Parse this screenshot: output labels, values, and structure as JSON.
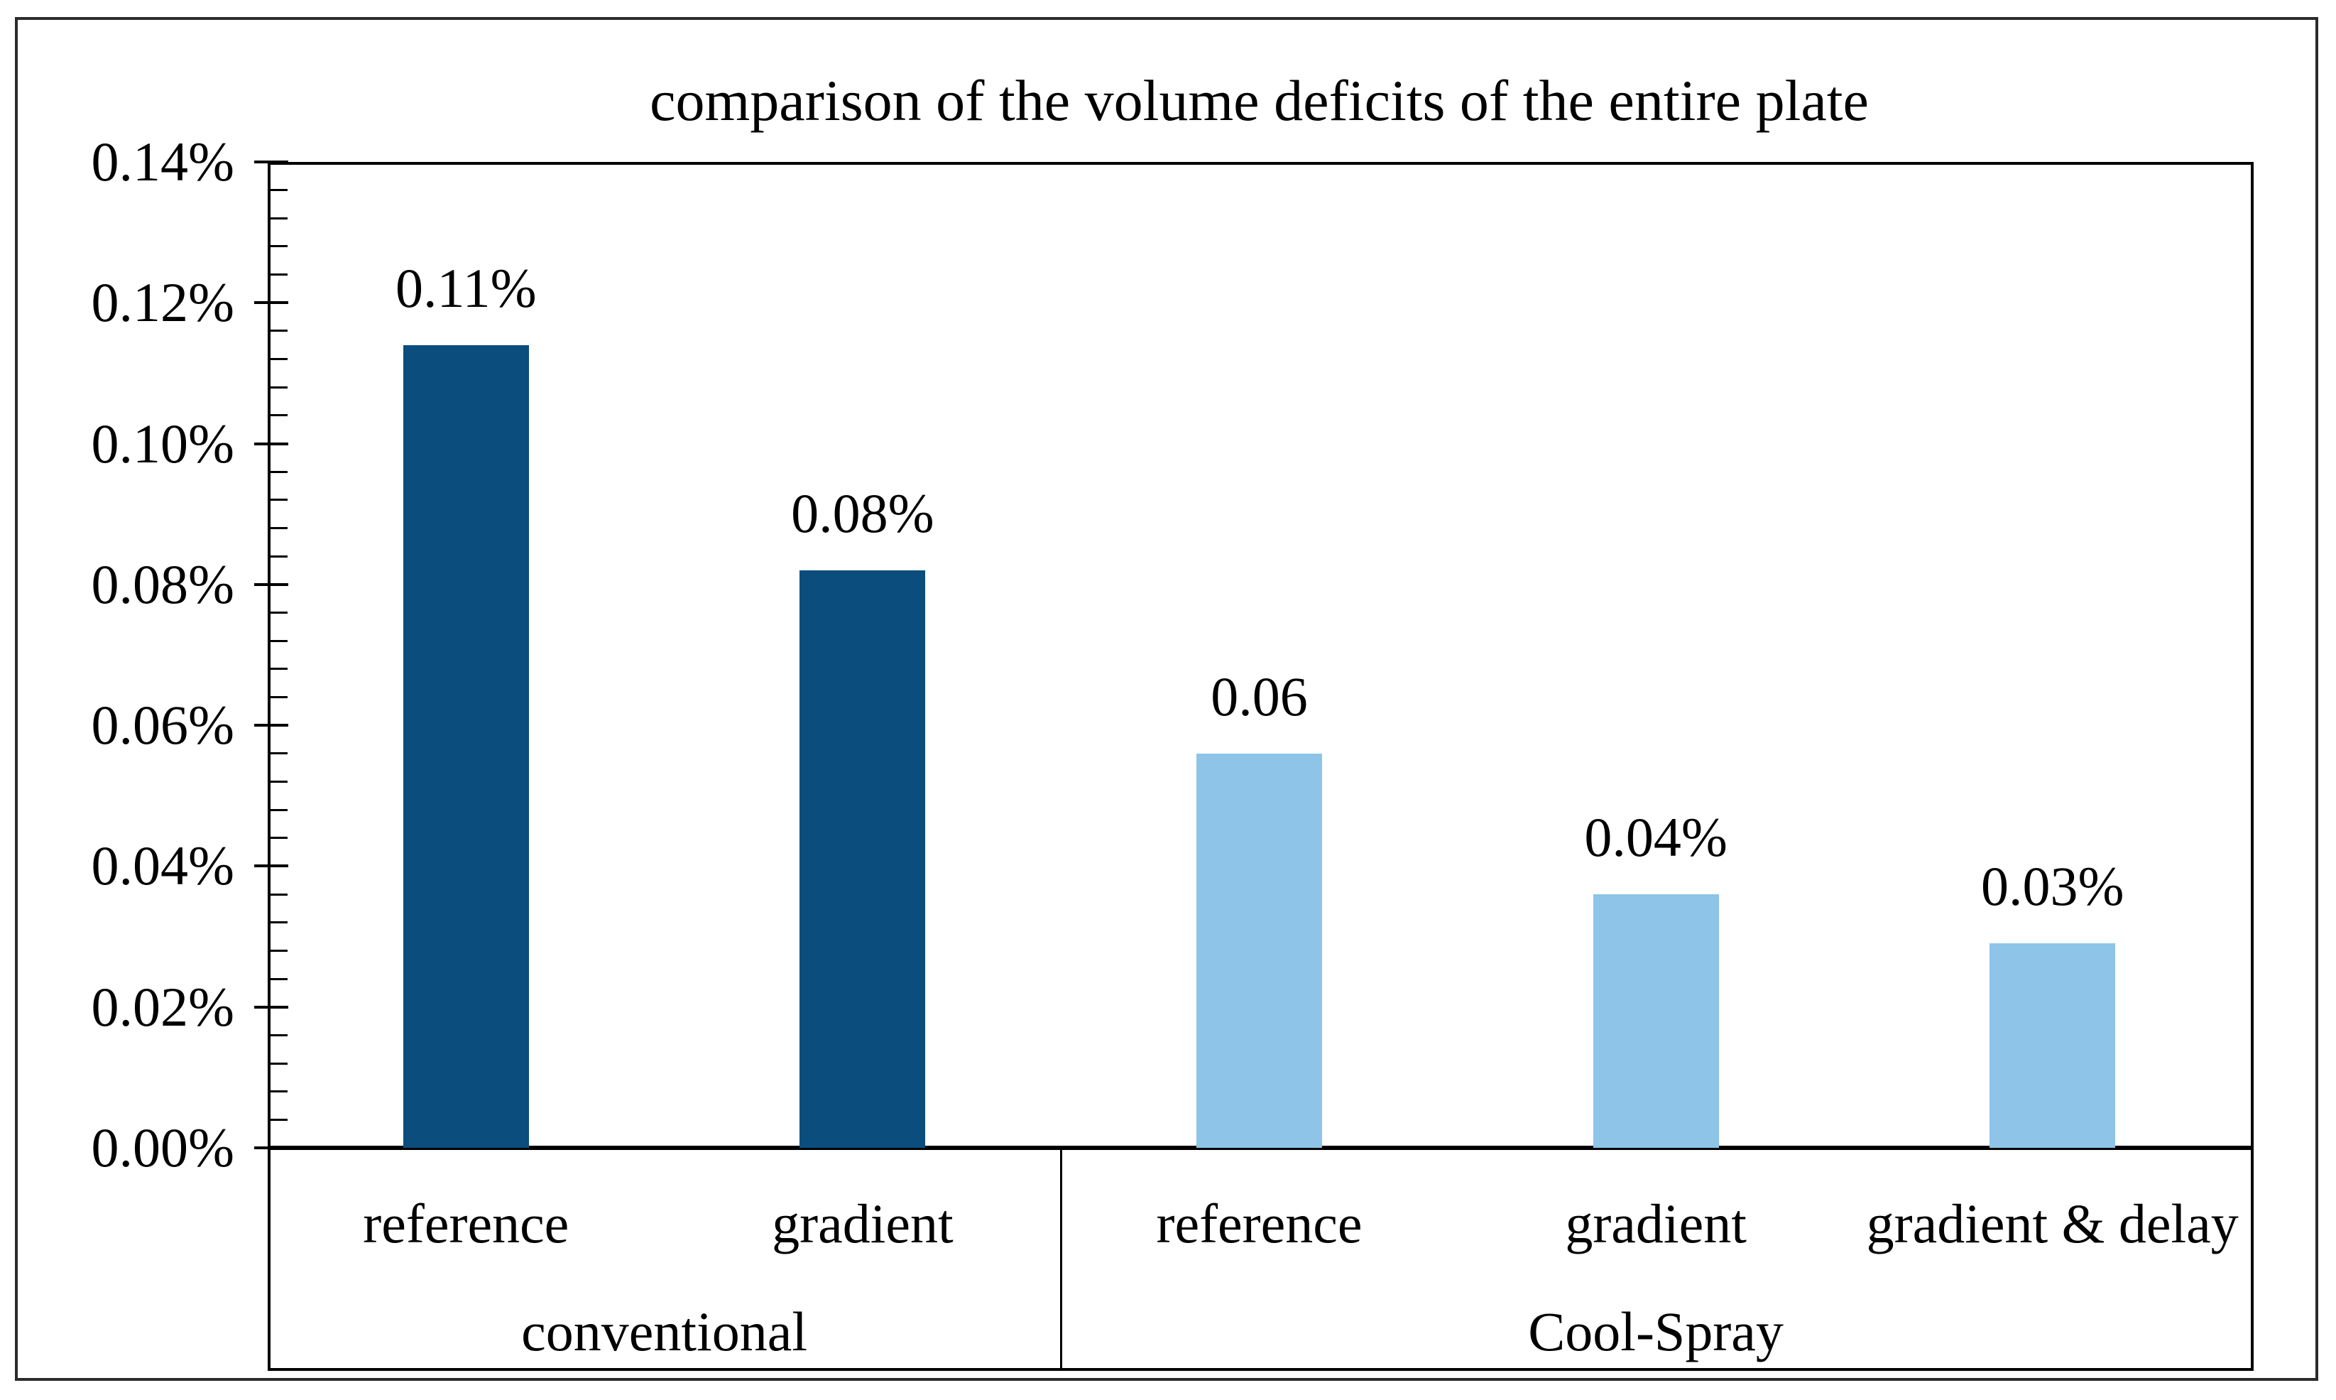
{
  "figure": {
    "title": "comparison of the volume deficits of the entire plate"
  },
  "colors": {
    "dark_blue": "#0B4D7D",
    "light_blue": "#8DC4E8",
    "axis": "#000000",
    "text": "#000000",
    "background": "#FFFFFF",
    "frame_border": "#2B2B2B"
  },
  "chart_data": {
    "type": "bar",
    "title": "comparison of the volume deficits of the entire plate",
    "categories": [
      "reference",
      "gradient",
      "reference",
      "gradient",
      "gradient & delay"
    ],
    "groups": [
      {
        "label": "conventional",
        "span": 2
      },
      {
        "label": "Cool-Spray",
        "span": 3
      }
    ],
    "series": [
      {
        "name": "volume deficit of the entire plate",
        "values": [
          0.114,
          0.082,
          0.056,
          0.036,
          0.029
        ],
        "value_labels": [
          "0.11%",
          "0.08%",
          "0.06",
          "0.04%",
          "0.03%"
        ],
        "bar_colors": [
          "#0B4D7D",
          "#0B4D7D",
          "#8DC4E8",
          "#8DC4E8",
          "#8DC4E8"
        ]
      }
    ],
    "xlabel": "",
    "ylabel": "",
    "ylim": [
      0,
      0.0014
    ],
    "y_axis": {
      "tick_values": [
        0.0,
        0.02,
        0.04,
        0.06,
        0.08,
        0.1,
        0.12,
        0.14
      ],
      "tick_labels": [
        "0.00%",
        "0.02%",
        "0.04%",
        "0.06%",
        "0.08%",
        "0.10%",
        "0.12%",
        "0.14%"
      ],
      "major_step": 0.02,
      "minor_step": 0.004,
      "max": 0.14
    },
    "grid": false,
    "legend": false
  }
}
